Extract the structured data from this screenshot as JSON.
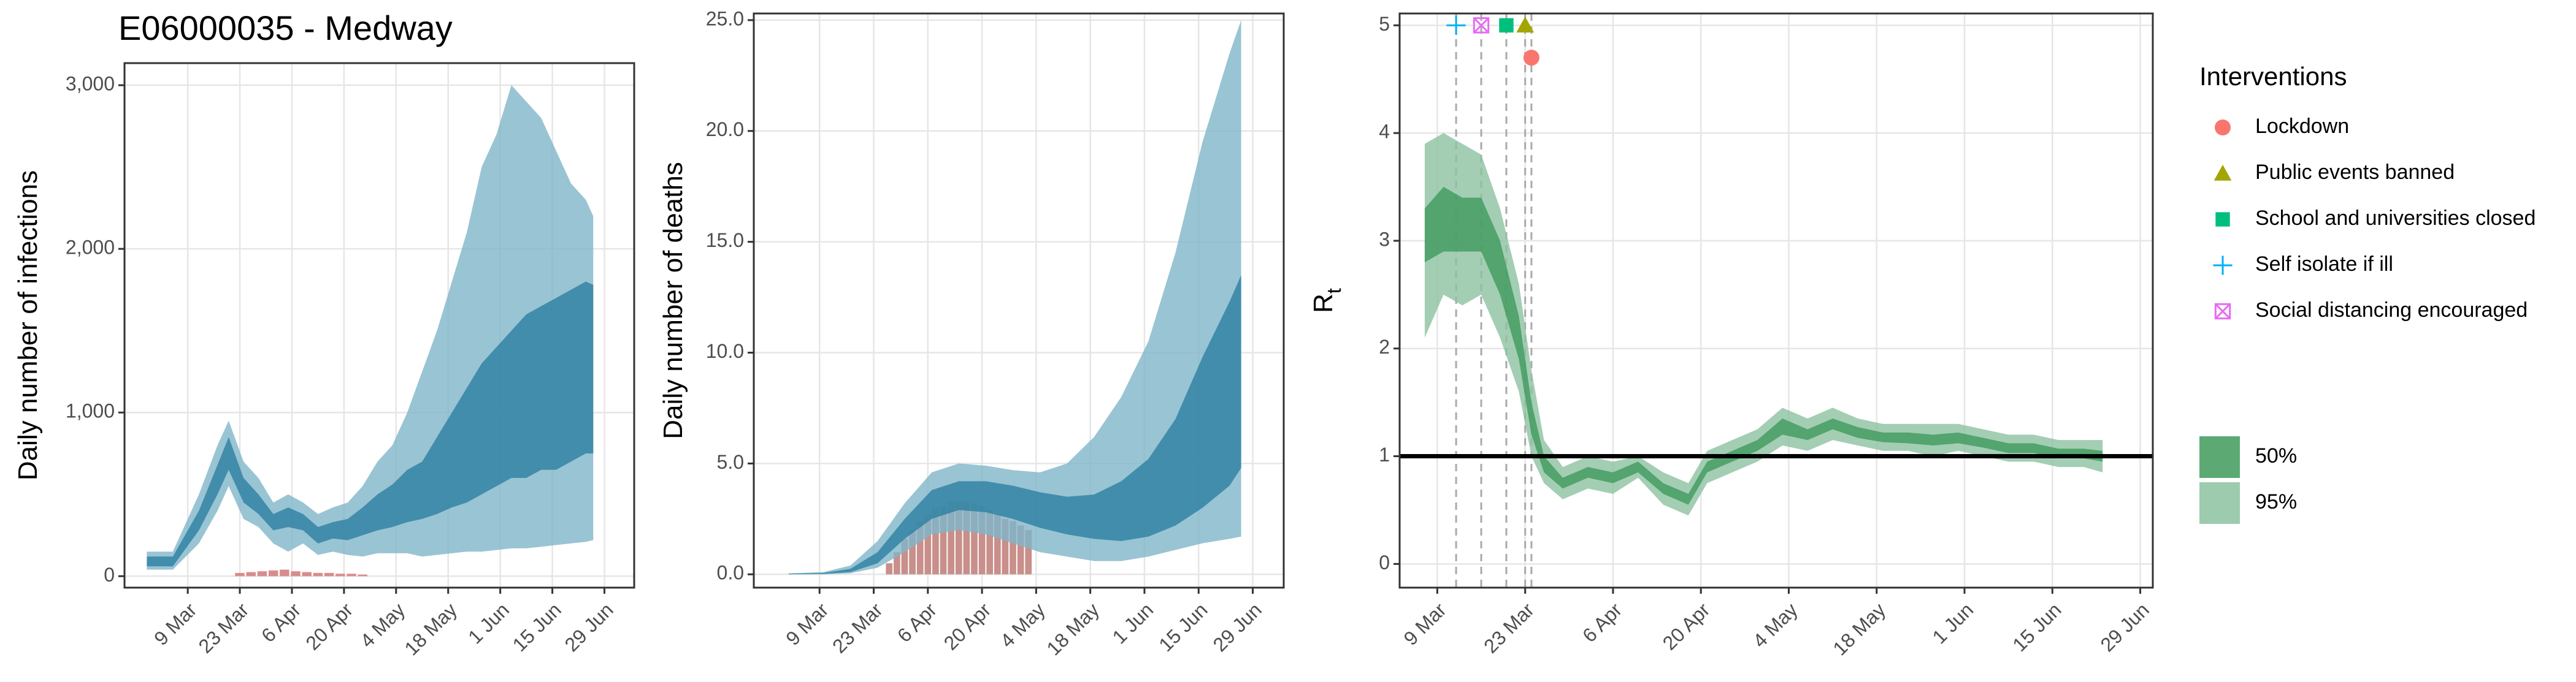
{
  "chart_data": [
    {
      "type": "band",
      "title": "E06000035 - Medway",
      "ylabel": "Daily number of infections",
      "grid": true,
      "xlim": [
        "20 Feb",
        "7 Jul"
      ],
      "xticks": [
        "9 Mar",
        "23 Mar",
        "6 Apr",
        "20 Apr",
        "4 May",
        "18 May",
        "1 Jun",
        "15 Jun",
        "29 Jun"
      ],
      "ylim": [
        -70,
        3135
      ],
      "yticks": [
        0,
        {
          "value": 1000,
          "label": "1,000"
        },
        {
          "value": 2000,
          "label": "2,000"
        },
        {
          "value": 3000,
          "label": "3,000"
        }
      ],
      "x": [
        "26 Feb",
        "5 Mar",
        "12 Mar",
        "17 Mar",
        "20 Mar",
        "24 Mar",
        "28 Mar",
        "1 Apr",
        "5 Apr",
        "9 Apr",
        "13 Apr",
        "17 Apr",
        "21 Apr",
        "25 Apr",
        "29 Apr",
        "3 May",
        "7 May",
        "11 May",
        "15 May",
        "19 May",
        "23 May",
        "27 May",
        "31 May",
        "4 Jun",
        "8 Jun",
        "12 Jun",
        "16 Jun",
        "20 Jun",
        "24 Jun",
        "26 Jun"
      ],
      "bands": [
        {
          "color": "#2c7fa0",
          "lower": [
            60,
            60,
            280,
            500,
            650,
            450,
            380,
            280,
            300,
            280,
            200,
            230,
            220,
            250,
            280,
            300,
            330,
            350,
            380,
            420,
            450,
            500,
            550,
            600,
            600,
            650,
            650,
            700,
            750,
            750
          ],
          "upper": [
            120,
            120,
            400,
            680,
            850,
            600,
            500,
            380,
            420,
            380,
            300,
            330,
            350,
            420,
            500,
            560,
            650,
            700,
            850,
            1000,
            1150,
            1300,
            1400,
            1500,
            1600,
            1650,
            1700,
            1750,
            1800,
            1780
          ]
        },
        {
          "color": "#7fb5c9",
          "lower": [
            40,
            40,
            200,
            400,
            550,
            350,
            300,
            200,
            150,
            200,
            130,
            150,
            130,
            120,
            140,
            140,
            140,
            120,
            130,
            140,
            150,
            150,
            160,
            170,
            170,
            180,
            190,
            200,
            210,
            220
          ],
          "upper": [
            150,
            150,
            500,
            800,
            950,
            700,
            600,
            450,
            500,
            450,
            380,
            420,
            450,
            550,
            700,
            800,
            1000,
            1250,
            1500,
            1800,
            2100,
            2500,
            2700,
            3000,
            2900,
            2800,
            2600,
            2400,
            2300,
            2200
          ]
        }
      ],
      "bars": {
        "color": "#d98c8c",
        "x": [
          "23 Mar",
          "26 Mar",
          "29 Mar",
          "1 Apr",
          "4 Apr",
          "7 Apr",
          "10 Apr",
          "13 Apr",
          "16 Apr",
          "19 Apr",
          "22 Apr",
          "25 Apr"
        ],
        "values": [
          20,
          25,
          30,
          35,
          40,
          30,
          25,
          20,
          20,
          15,
          15,
          10
        ]
      }
    },
    {
      "type": "band",
      "ylabel": "Daily number of deaths",
      "grid": true,
      "xlim": [
        "20 Feb",
        "7 Jul"
      ],
      "xticks": [
        "9 Mar",
        "23 Mar",
        "6 Apr",
        "20 Apr",
        "4 May",
        "18 May",
        "1 Jun",
        "15 Jun",
        "29 Jun"
      ],
      "ylim": [
        -0.6,
        25.3
      ],
      "yticks": [
        {
          "value": 0,
          "label": "0.0"
        },
        {
          "value": 5,
          "label": "5.0"
        },
        {
          "value": 10,
          "label": "10.0"
        },
        {
          "value": 15,
          "label": "15.0"
        },
        {
          "value": 20,
          "label": "20.0"
        },
        {
          "value": 25,
          "label": "25.0"
        }
      ],
      "x": [
        "1 Mar",
        "10 Mar",
        "17 Mar",
        "24 Mar",
        "31 Mar",
        "7 Apr",
        "14 Apr",
        "21 Apr",
        "28 Apr",
        "5 May",
        "12 May",
        "19 May",
        "26 May",
        "2 Jun",
        "9 Jun",
        "16 Jun",
        "23 Jun",
        "26 Jun"
      ],
      "bands": [
        {
          "color": "#2c7fa0",
          "lower": [
            0,
            0.02,
            0.1,
            0.5,
            1.6,
            2.5,
            2.9,
            2.8,
            2.5,
            2.1,
            1.8,
            1.6,
            1.5,
            1.7,
            2.2,
            3.0,
            4.0,
            4.8
          ],
          "upper": [
            0.02,
            0.06,
            0.25,
            1.0,
            2.5,
            3.8,
            4.2,
            4.2,
            4.0,
            3.7,
            3.5,
            3.6,
            4.2,
            5.2,
            7.0,
            9.8,
            12.3,
            13.5
          ]
        },
        {
          "color": "#7fb5c9",
          "lower": [
            0,
            0,
            0.05,
            0.3,
            1.0,
            1.8,
            2.0,
            1.8,
            1.4,
            1.0,
            0.8,
            0.6,
            0.6,
            0.8,
            1.1,
            1.4,
            1.6,
            1.7
          ],
          "upper": [
            0.05,
            0.1,
            0.4,
            1.5,
            3.2,
            4.6,
            5.0,
            4.9,
            4.7,
            4.6,
            5.0,
            6.2,
            8.0,
            10.5,
            14.5,
            19.5,
            23.5,
            25.0
          ]
        }
      ],
      "bars": {
        "color": "#c98f8a",
        "x": [
          "27 Mar",
          "29 Mar",
          "31 Mar",
          "2 Apr",
          "4 Apr",
          "6 Apr",
          "8 Apr",
          "10 Apr",
          "12 Apr",
          "14 Apr",
          "16 Apr",
          "18 Apr",
          "20 Apr",
          "22 Apr",
          "24 Apr",
          "26 Apr",
          "28 Apr",
          "30 Apr",
          "2 May"
        ],
        "values": [
          0.5,
          1.0,
          1.6,
          2.0,
          2.4,
          2.7,
          3.0,
          3.1,
          3.3,
          3.3,
          3.3,
          3.2,
          3.1,
          2.9,
          2.7,
          2.5,
          2.4,
          2.2,
          2.0
        ]
      }
    },
    {
      "type": "band",
      "ylabel": "R",
      "ylabel_sub": "t",
      "grid": true,
      "hline": 1,
      "xlim": [
        "3 Mar",
        "1 Jul"
      ],
      "xticks": [
        "9 Mar",
        "23 Mar",
        "6 Apr",
        "20 Apr",
        "4 May",
        "18 May",
        "1 Jun",
        "15 Jun",
        "29 Jun"
      ],
      "ylim": [
        -0.22,
        5.11
      ],
      "yticks": [
        0,
        1,
        2,
        3,
        4,
        5
      ],
      "x": [
        "7 Mar",
        "10 Mar",
        "13 Mar",
        "16 Mar",
        "19 Mar",
        "22 Mar",
        "24 Mar",
        "26 Mar",
        "29 Mar",
        "2 Apr",
        "6 Apr",
        "10 Apr",
        "14 Apr",
        "18 Apr",
        "21 Apr",
        "25 Apr",
        "29 Apr",
        "3 May",
        "7 May",
        "11 May",
        "15 May",
        "19 May",
        "23 May",
        "27 May",
        "31 May",
        "4 Jun",
        "8 Jun",
        "12 Jun",
        "16 Jun",
        "20 Jun",
        "23 Jun"
      ],
      "bands": [
        {
          "name": "50%",
          "color": "#3f9a5c",
          "lower": [
            2.8,
            2.9,
            2.9,
            2.9,
            2.5,
            1.9,
            1.2,
            0.85,
            0.7,
            0.8,
            0.75,
            0.85,
            0.65,
            0.55,
            0.85,
            0.95,
            1.05,
            1.2,
            1.15,
            1.25,
            1.17,
            1.13,
            1.12,
            1.1,
            1.12,
            1.08,
            1.03,
            1.03,
            0.98,
            0.98,
            0.95
          ],
          "upper": [
            3.3,
            3.5,
            3.4,
            3.4,
            3.0,
            2.3,
            1.5,
            1.0,
            0.8,
            0.9,
            0.85,
            0.95,
            0.75,
            0.65,
            0.95,
            1.05,
            1.15,
            1.35,
            1.25,
            1.35,
            1.27,
            1.22,
            1.22,
            1.2,
            1.22,
            1.17,
            1.12,
            1.12,
            1.07,
            1.07,
            1.05
          ]
        },
        {
          "name": "95%",
          "color": "#8cc2a0",
          "lower": [
            2.1,
            2.5,
            2.4,
            2.5,
            2.1,
            1.6,
            1.0,
            0.75,
            0.6,
            0.7,
            0.65,
            0.8,
            0.55,
            0.45,
            0.75,
            0.85,
            0.95,
            1.1,
            1.05,
            1.15,
            1.1,
            1.05,
            1.05,
            1.0,
            1.05,
            1.0,
            0.95,
            0.95,
            0.9,
            0.9,
            0.85
          ],
          "upper": [
            3.9,
            4.0,
            3.9,
            3.8,
            3.3,
            2.6,
            1.8,
            1.15,
            0.9,
            1.0,
            0.95,
            1.0,
            0.85,
            0.75,
            1.05,
            1.15,
            1.25,
            1.45,
            1.35,
            1.45,
            1.35,
            1.3,
            1.3,
            1.3,
            1.3,
            1.25,
            1.2,
            1.2,
            1.15,
            1.15,
            1.15
          ]
        }
      ],
      "legend_title": "Interventions",
      "interventions": [
        {
          "name": "Lockdown",
          "date": "24 Mar",
          "y": 4.7,
          "color": "#F8766D",
          "shape": "circle"
        },
        {
          "name": "Public events banned",
          "date": "23 Mar",
          "y": 5,
          "color": "#A3A500",
          "shape": "triangle"
        },
        {
          "name": "School and universities closed",
          "date": "20 Mar",
          "y": 5,
          "color": "#00BF7D",
          "shape": "square"
        },
        {
          "name": "Self isolate if ill",
          "date": "12 Mar",
          "y": 5,
          "color": "#00B0F6",
          "shape": "plus"
        },
        {
          "name": "Social distancing encouraged",
          "date": "16 Mar",
          "y": 5,
          "color": "#E76BF3",
          "shape": "boxx"
        }
      ]
    }
  ]
}
